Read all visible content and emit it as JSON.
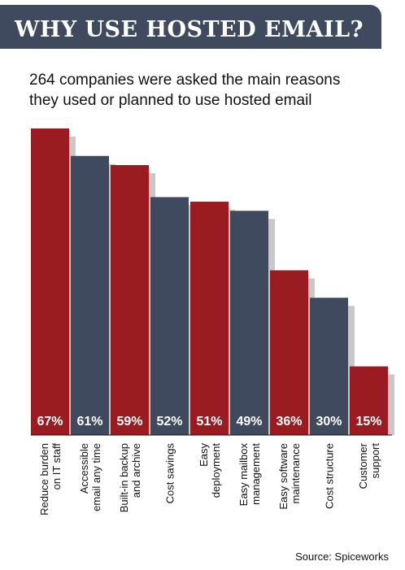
{
  "chart_data": {
    "type": "bar",
    "title": "WHY USE HOSTED EMAIL?",
    "subtitle": [
      "264 companies were asked the main reasons",
      "they used or planned to use hosted email"
    ],
    "categories": [
      [
        "Reduce burden",
        "on IT staff"
      ],
      [
        "Accessible",
        "email any time"
      ],
      [
        "Built-in backup",
        "and archive"
      ],
      [
        "Cost savings"
      ],
      [
        "Easy",
        "deployment"
      ],
      [
        "Easy mailbox",
        "management"
      ],
      [
        "Easy software",
        "maintenance"
      ],
      [
        "Cost structure"
      ],
      [
        "Customer",
        "support"
      ]
    ],
    "values": [
      67,
      61,
      59,
      52,
      51,
      49,
      36,
      30,
      15
    ],
    "value_labels": [
      "67%",
      "61%",
      "59%",
      "52%",
      "51%",
      "49%",
      "36%",
      "30%",
      "15%"
    ],
    "colors": [
      "#9b1c20",
      "#3f4a5e",
      "#9b1c20",
      "#3f4a5e",
      "#9b1c20",
      "#3f4a5e",
      "#9b1c20",
      "#3f4a5e",
      "#9b1c20"
    ],
    "source": "Source: Spiceworks"
  }
}
